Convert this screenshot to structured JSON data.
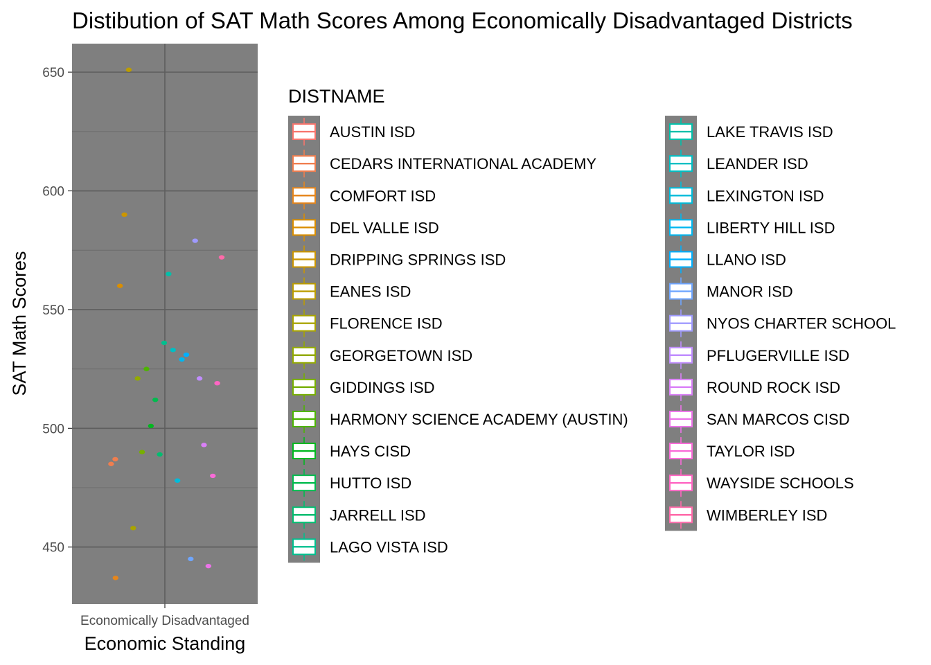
{
  "chart_data": {
    "type": "scatter",
    "title": "Distibution of SAT Math Scores Among Economically Disadvantaged Districts",
    "xlabel": "Economic Standing",
    "ylabel": "SAT Math Scores",
    "categories": [
      "Economically Disadvantaged"
    ],
    "ylim": [
      426,
      662
    ],
    "yticks": [
      450,
      500,
      550,
      600,
      650
    ],
    "grid": true,
    "panel_background": "#7f7f7f",
    "legend": {
      "title": "DISTNAME",
      "placement": "right",
      "columns": 2
    },
    "series": [
      {
        "name": "AUSTIN ISD",
        "color": "#F8766D",
        "values": []
      },
      {
        "name": "CEDARS INTERNATIONAL ACADEMY",
        "color": "#F07E4F",
        "values": [
          485,
          487
        ]
      },
      {
        "name": "COMFORT ISD",
        "color": "#E6861C",
        "values": [
          437
        ]
      },
      {
        "name": "DEL VALLE ISD",
        "color": "#DA8E00",
        "values": [
          560
        ]
      },
      {
        "name": "DRIPPING SPRINGS ISD",
        "color": "#CC9600",
        "values": [
          590
        ]
      },
      {
        "name": "EANES ISD",
        "color": "#BC9D00",
        "values": [
          651
        ]
      },
      {
        "name": "FLORENCE ISD",
        "color": "#A9A400",
        "values": [
          458
        ]
      },
      {
        "name": "GEORGETOWN ISD",
        "color": "#93AA00",
        "values": [
          521
        ]
      },
      {
        "name": "GIDDINGS ISD",
        "color": "#77AF00",
        "values": [
          490
        ]
      },
      {
        "name": "HARMONY SCIENCE ACADEMY (AUSTIN)",
        "color": "#4DB400",
        "values": [
          525
        ]
      },
      {
        "name": "HAYS CISD",
        "color": "#00B81F",
        "values": [
          501
        ]
      },
      {
        "name": "HUTTO ISD",
        "color": "#00BB4E",
        "values": [
          512
        ]
      },
      {
        "name": "JARRELL ISD",
        "color": "#00BD70",
        "values": [
          489
        ]
      },
      {
        "name": "LAGO VISTA ISD",
        "color": "#00BF8E",
        "values": [
          536
        ]
      },
      {
        "name": "LAKE TRAVIS ISD",
        "color": "#00C0AA",
        "values": [
          565
        ]
      },
      {
        "name": "LEANDER ISD",
        "color": "#00BFC4",
        "values": [
          533
        ]
      },
      {
        "name": "LEXINGTON ISD",
        "color": "#00BCDB",
        "values": [
          478
        ]
      },
      {
        "name": "LIBERTY HILL ISD",
        "color": "#00B7F0",
        "values": [
          529
        ]
      },
      {
        "name": "LLANO ISD",
        "color": "#00B0FF",
        "values": [
          531
        ]
      },
      {
        "name": "MANOR ISD",
        "color": "#6FA6FF",
        "values": [
          445
        ]
      },
      {
        "name": "NYOS CHARTER SCHOOL",
        "color": "#9F9AFF",
        "values": [
          579
        ]
      },
      {
        "name": "PFLUGERVILLE ISD",
        "color": "#C08DFF",
        "values": [
          521
        ]
      },
      {
        "name": "ROUND ROCK ISD",
        "color": "#DA80F8",
        "values": [
          493
        ]
      },
      {
        "name": "SAN MARCOS CISD",
        "color": "#EC73E9",
        "values": [
          442
        ]
      },
      {
        "name": "TAYLOR ISD",
        "color": "#F96BD8",
        "values": [
          480
        ]
      },
      {
        "name": "WAYSIDE SCHOOLS",
        "color": "#FF66C3",
        "values": [
          519
        ]
      },
      {
        "name": "WIMBERLEY ISD",
        "color": "#FF6AA9",
        "values": [
          572
        ]
      }
    ]
  }
}
